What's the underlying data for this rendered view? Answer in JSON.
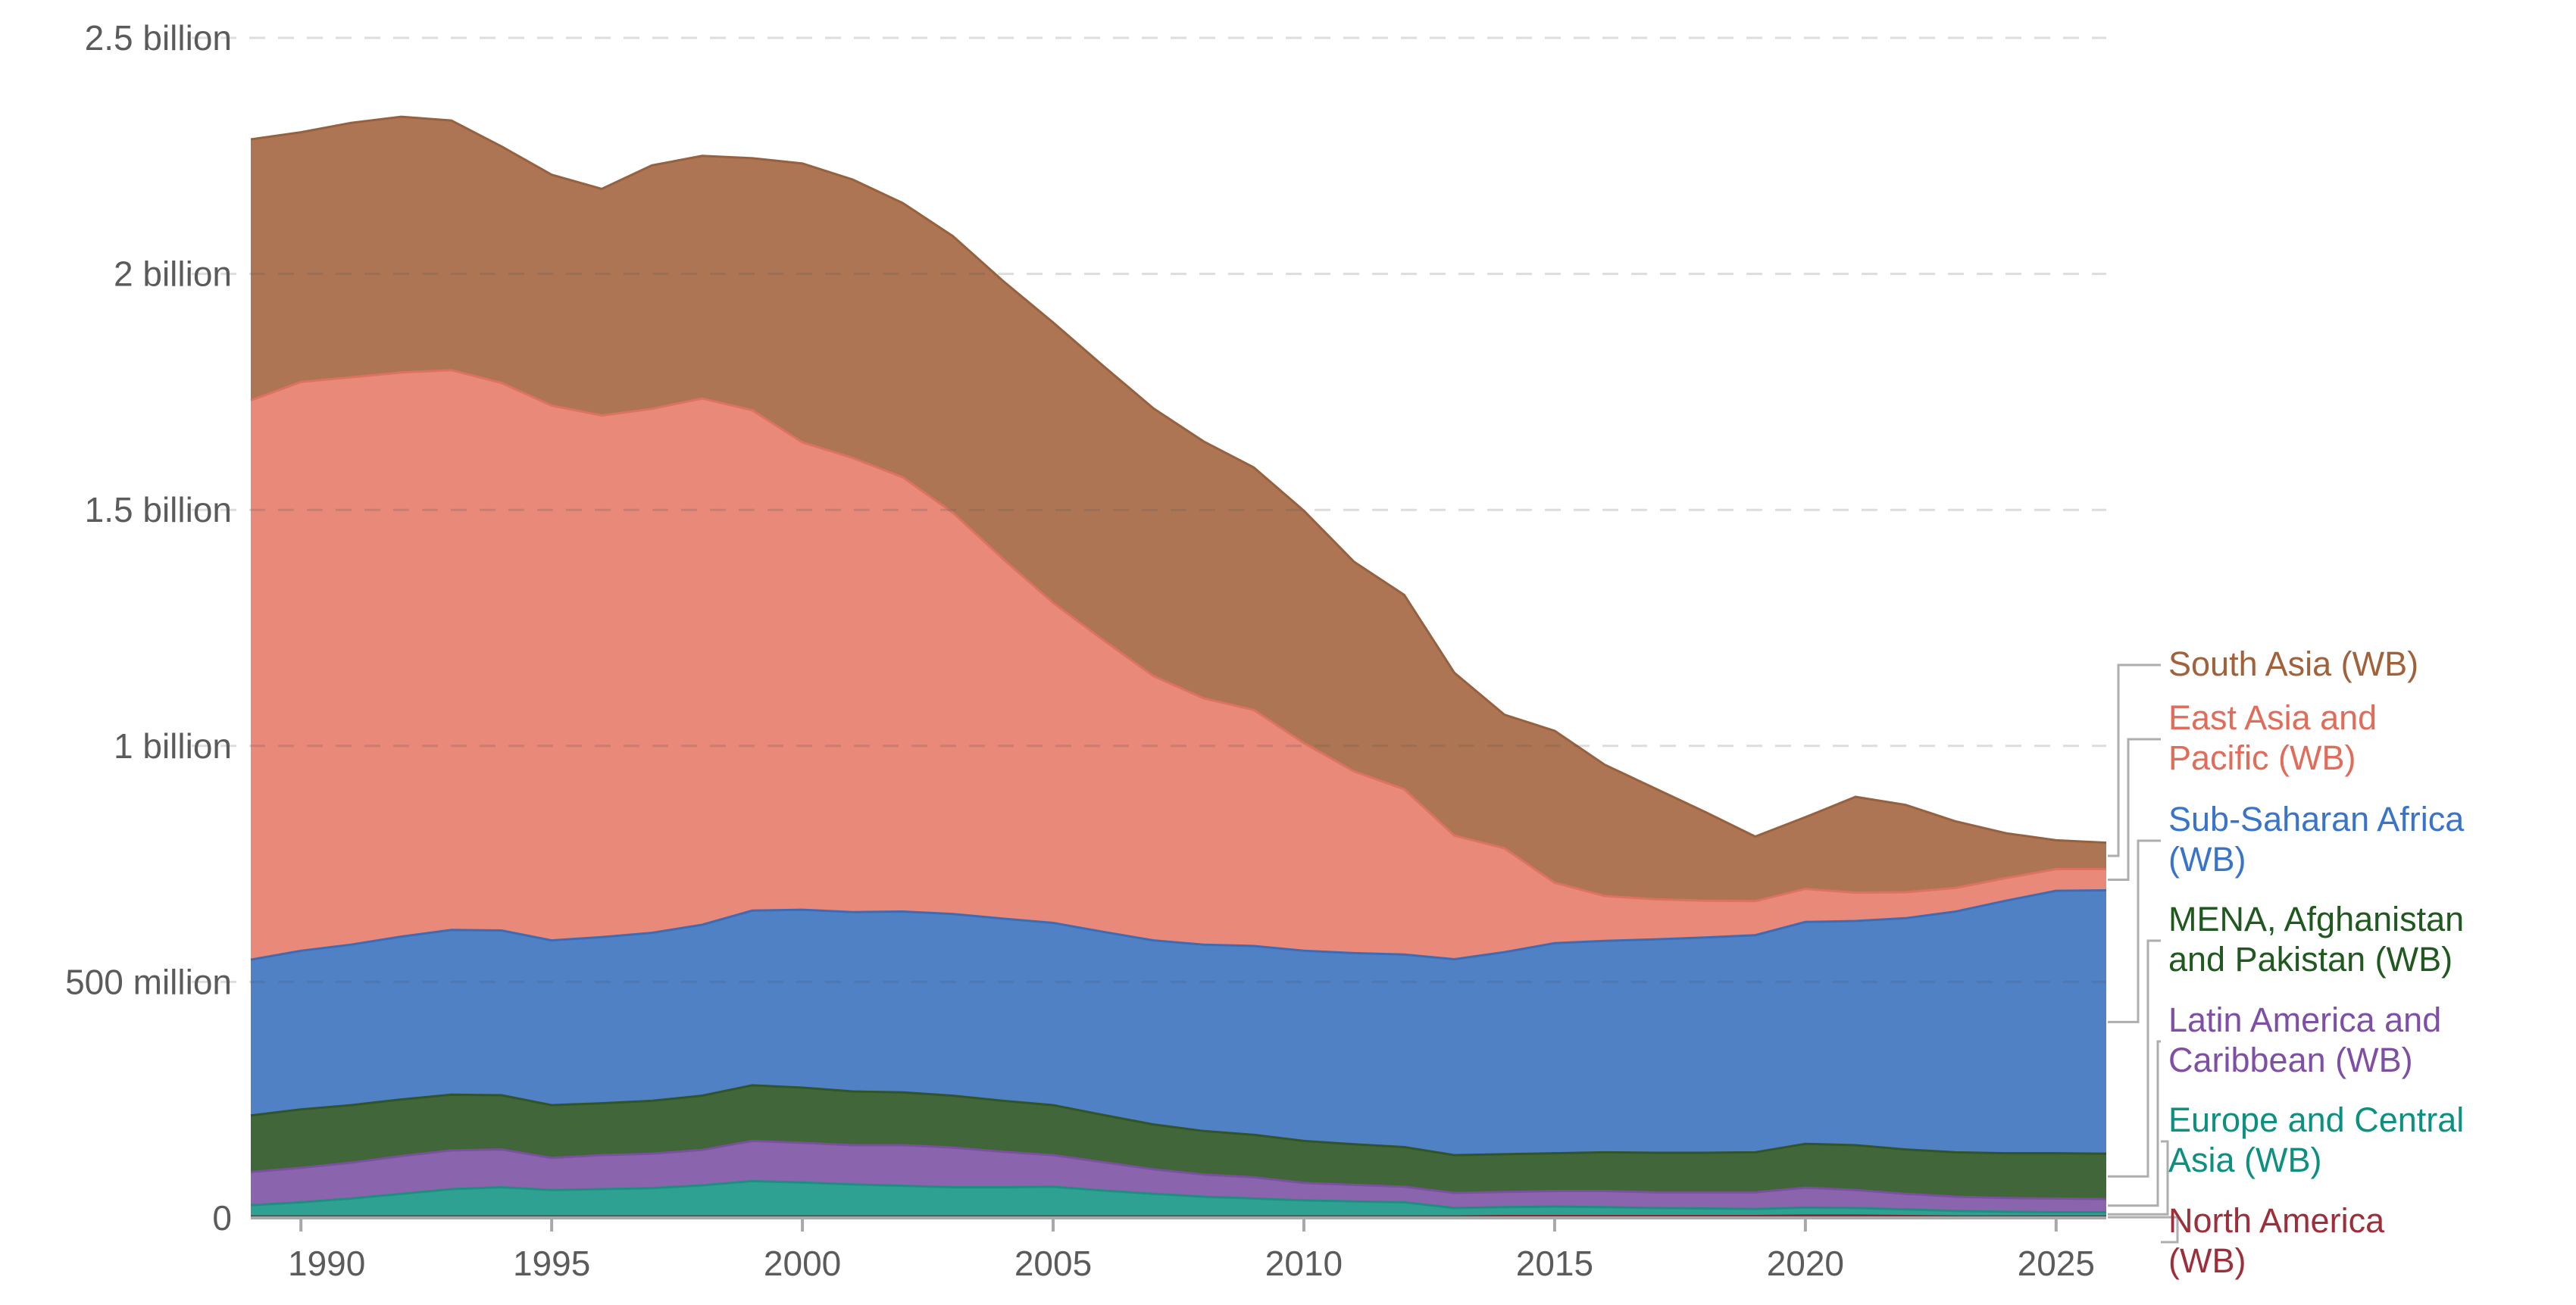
{
  "chart_data": {
    "type": "area",
    "stacked": true,
    "title": "",
    "xlabel": "",
    "ylabel": "",
    "y_unit": "people (millions)",
    "ylim": [
      0,
      2500
    ],
    "grid": "dashed-horizontal",
    "legend_position": "right",
    "x": [
      1989,
      1990,
      1991,
      1992,
      1993,
      1994,
      1995,
      1996,
      1997,
      1998,
      1999,
      2000,
      2001,
      2002,
      2003,
      2004,
      2005,
      2006,
      2007,
      2008,
      2009,
      2010,
      2011,
      2012,
      2013,
      2014,
      2015,
      2016,
      2017,
      2018,
      2019,
      2020,
      2021,
      2022,
      2023,
      2024,
      2025,
      2026
    ],
    "x_ticks": [
      {
        "value": 1990,
        "label": "1990"
      },
      {
        "value": 1995,
        "label": "1995"
      },
      {
        "value": 2000,
        "label": "2000"
      },
      {
        "value": 2005,
        "label": "2005"
      },
      {
        "value": 2010,
        "label": "2010"
      },
      {
        "value": 2015,
        "label": "2015"
      },
      {
        "value": 2020,
        "label": "2020"
      },
      {
        "value": 2025,
        "label": "2025"
      }
    ],
    "y_ticks": [
      {
        "value": 0,
        "label": "0"
      },
      {
        "value": 500,
        "label": "500 million"
      },
      {
        "value": 1000,
        "label": "1 billion"
      },
      {
        "value": 1500,
        "label": "1.5 billion"
      },
      {
        "value": 2000,
        "label": "2 billion"
      },
      {
        "value": 2500,
        "label": "2.5 billion"
      }
    ],
    "series": [
      {
        "id": "north-america",
        "name": "North America (WB)",
        "legend_lines": [
          "North America",
          "(WB)"
        ],
        "fill": "#8C3A42",
        "line": "#7C2D35",
        "text_color": "#9C2F39",
        "values": [
          3,
          3,
          3,
          3,
          3,
          3,
          3,
          3,
          3,
          3,
          3,
          3,
          3,
          3,
          3,
          3,
          3,
          3,
          3,
          3,
          3,
          3,
          3,
          3,
          3,
          4,
          4,
          4,
          4,
          4,
          4,
          5,
          5,
          4,
          3,
          3,
          3,
          3
        ]
      },
      {
        "id": "europe-central-asia",
        "name": "Europe and Central Asia (WB)",
        "legend_lines": [
          "Europe and Central",
          "Asia (WB)"
        ],
        "fill": "#2FA193",
        "line": "#1E8E80",
        "text_color": "#0E9081",
        "values": [
          24,
          30,
          38,
          48,
          58,
          62,
          56,
          58,
          60,
          66,
          75,
          72,
          68,
          65,
          62,
          62,
          63,
          55,
          48,
          42,
          38,
          34,
          32,
          30,
          18,
          19,
          20,
          19,
          17,
          16,
          15,
          17,
          16,
          14,
          12,
          10,
          9,
          9
        ]
      },
      {
        "id": "latin-america-caribbean",
        "name": "Latin America and Caribbean (WB)",
        "legend_lines": [
          "Latin America and",
          "Caribbean (WB)"
        ],
        "fill": "#8B64AE",
        "line": "#7A519F",
        "text_color": "#7E4FA5",
        "values": [
          70,
          73,
          76,
          80,
          82,
          80,
          68,
          72,
          73,
          75,
          85,
          84,
          83,
          86,
          84,
          75,
          67,
          60,
          52,
          47,
          45,
          37,
          35,
          33,
          32,
          32,
          33,
          34,
          33,
          34,
          35,
          42,
          38,
          33,
          30,
          29,
          29,
          28
        ]
      },
      {
        "id": "mena-afghanistan-pakistan",
        "name": "MENA, Afghanistan and Pakistan (WB)",
        "legend_lines": [
          "MENA, Afghanistan",
          "and Pakistan (WB)"
        ],
        "fill": "#41663A",
        "line": "#31542B",
        "text_color": "#20591F",
        "values": [
          120,
          124,
          122,
          120,
          118,
          115,
          112,
          110,
          112,
          115,
          118,
          117,
          114,
          112,
          110,
          108,
          106,
          100,
          95,
          92,
          90,
          89,
          86,
          84,
          80,
          80,
          80,
          82,
          84,
          84,
          85,
          93,
          95,
          94,
          94,
          95,
          96,
          96
        ]
      },
      {
        "id": "sub-saharan-africa",
        "name": "Sub-Saharan Africa (WB)",
        "legend_lines": [
          "Sub-Saharan Africa",
          "(WB)"
        ],
        "fill": "#5081C5",
        "line": "#3D6CB4",
        "text_color": "#3A74C8",
        "values": [
          330,
          336,
          340,
          345,
          349,
          349,
          349,
          352,
          356,
          362,
          370,
          377,
          380,
          383,
          385,
          386,
          386,
          388,
          390,
          395,
          400,
          403,
          405,
          408,
          415,
          428,
          445,
          448,
          452,
          456,
          460,
          470,
          475,
          490,
          510,
          535,
          556,
          558
        ]
      },
      {
        "id": "east-asia-pacific",
        "name": "East Asia and Pacific (WB)",
        "legend_lines": [
          "East Asia and",
          "Pacific (WB)"
        ],
        "fill": "#E8897A",
        "line": "#DE7260",
        "text_color": "#E06C59",
        "values": [
          1185,
          1205,
          1202,
          1195,
          1186,
          1160,
          1133,
          1105,
          1110,
          1115,
          1060,
          990,
          962,
          920,
          850,
          762,
          678,
          618,
          560,
          522,
          500,
          440,
          385,
          350,
          262,
          220,
          128,
          95,
          85,
          78,
          72,
          70,
          60,
          55,
          50,
          48,
          46,
          45
        ]
      },
      {
        "id": "south-asia",
        "name": "South Asia (WB)",
        "legend_lines": [
          "South Asia (WB)"
        ],
        "fill": "#AE7554",
        "line": "#96613F",
        "text_color": "#A0613B",
        "values": [
          553,
          529,
          539,
          542,
          529,
          501,
          489,
          480,
          516,
          514,
          534,
          591,
          590,
          581,
          586,
          589,
          594,
          581,
          567,
          544,
          514,
          492,
          444,
          412,
          345,
          283,
          322,
          278,
          235,
          188,
          137,
          152,
          203,
          185,
          141,
          95,
          61,
          56
        ]
      }
    ]
  },
  "colors": {
    "axis_text": "#5b5b5b",
    "axis_line": "#a8a8a8",
    "gridline": "rgba(85,85,85,0.20)",
    "connector": "#aeaeae",
    "background": "#ffffff"
  }
}
